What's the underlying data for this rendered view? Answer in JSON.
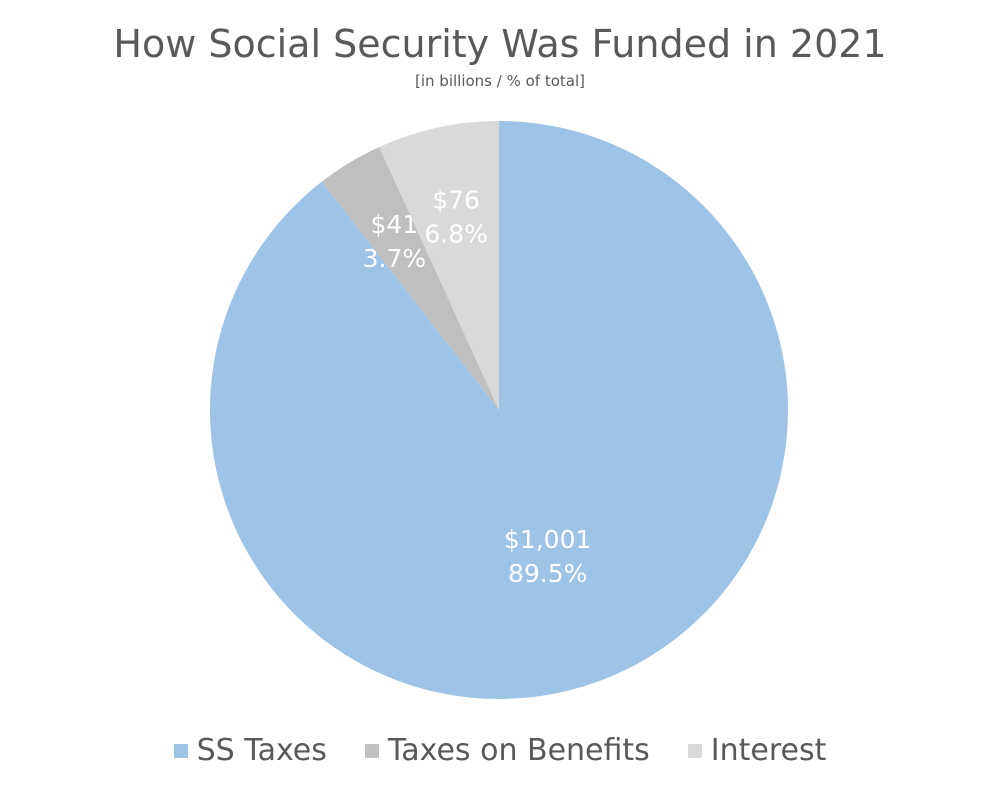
{
  "chart_data": {
    "type": "pie",
    "title": "How Social Security Was Funded in 2021",
    "subtitle": "[in billions / % of total]",
    "legend_position": "bottom",
    "start_angle": "top, clockwise",
    "slices": [
      {
        "name": "SS Taxes",
        "value": 1001,
        "percent": 89.5,
        "value_label": "$1,001",
        "percent_label": "89.5%",
        "color": "#9DC3E6"
      },
      {
        "name": "Taxes on Benefits",
        "value": 41,
        "percent": 3.7,
        "value_label": "$41",
        "percent_label": "3.7%",
        "color": "#BFBFBF"
      },
      {
        "name": "Interest",
        "value": 76,
        "percent": 6.8,
        "value_label": "$76",
        "percent_label": "6.8%",
        "color": "#D9D9D9"
      }
    ]
  }
}
